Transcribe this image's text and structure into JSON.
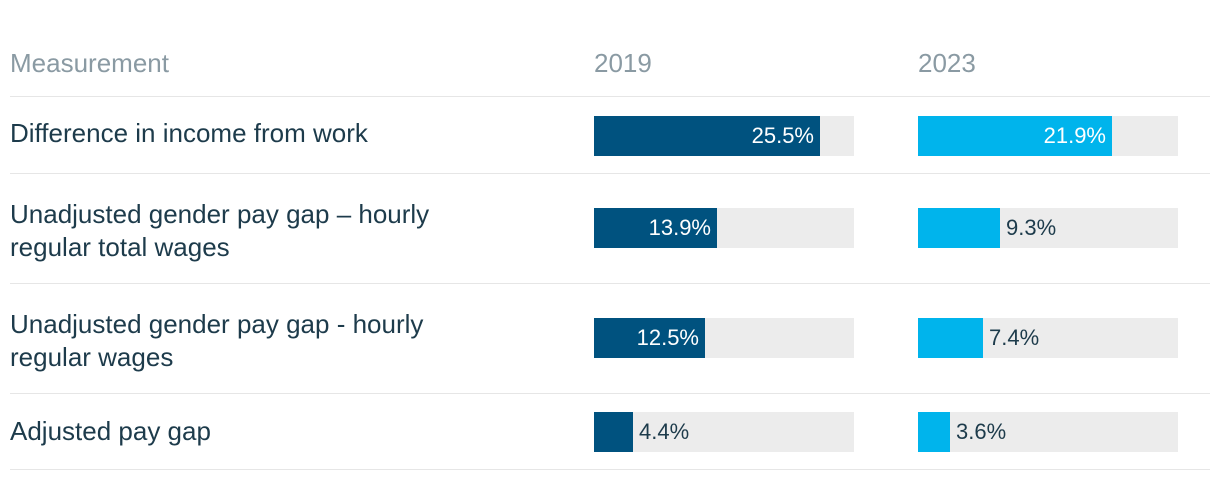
{
  "header": {
    "measurement": "Measurement",
    "year1": "2019",
    "year2": "2023"
  },
  "colors": {
    "y2019": "#00527f",
    "y2023": "#00b4ec",
    "track": "#ececec"
  },
  "chart_data": {
    "type": "table",
    "columns": [
      "Measurement",
      "2019",
      "2023"
    ],
    "scale_max": 29.4,
    "rows": [
      {
        "label": "Difference in income from work",
        "v2019": 25.5,
        "t2019": "25.5%",
        "v2023": 21.9,
        "t2023": "21.9%"
      },
      {
        "label": "Unadjusted gender pay gap – hourly regular total wages",
        "v2019": 13.9,
        "t2019": "13.9%",
        "v2023": 9.3,
        "t2023": "9.3%"
      },
      {
        "label": "Unadjusted gender pay gap - hourly regular wages",
        "v2019": 12.5,
        "t2019": "12.5%",
        "v2023": 7.4,
        "t2023": "7.4%"
      },
      {
        "label": "Adjusted pay gap",
        "v2019": 4.4,
        "t2019": "4.4%",
        "v2023": 3.6,
        "t2023": "3.6%"
      }
    ]
  }
}
